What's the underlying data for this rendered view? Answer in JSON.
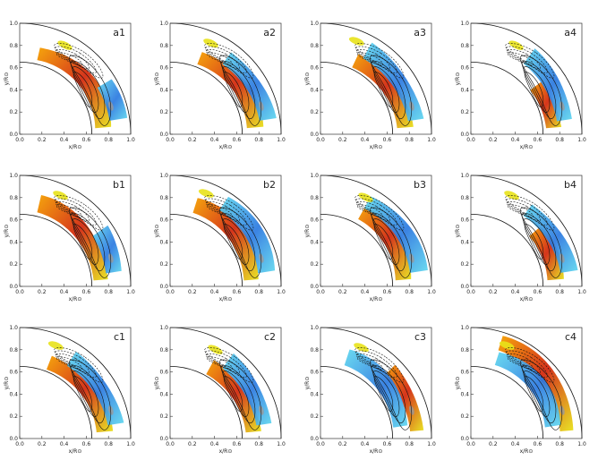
{
  "figure": {
    "x_label": "x/R⊙",
    "y_label": "y/R⊙",
    "x_ticks": [
      "0.0",
      "0.2",
      "0.4",
      "0.6",
      "0.8",
      "1.0"
    ],
    "y_ticks": [
      "0.0",
      "0.2",
      "0.4",
      "0.6",
      "0.8",
      "1.0"
    ],
    "panels": [
      {
        "label": "a1",
        "pos": "1-1",
        "warm": 0.9,
        "cool": 0.3,
        "warm_band": "inner"
      },
      {
        "label": "a2",
        "pos": "1-2",
        "warm": 0.8,
        "cool": 0.6,
        "warm_band": "inner"
      },
      {
        "label": "a3",
        "pos": "1-3",
        "warm": 0.75,
        "cool": 0.7,
        "warm_band": "inner"
      },
      {
        "label": "a4",
        "pos": "1-4",
        "warm": 0.4,
        "cool": 0.6,
        "warm_band": "inner"
      },
      {
        "label": "b1",
        "pos": "2-1",
        "warm": 0.9,
        "cool": 0.35,
        "warm_band": "inner"
      },
      {
        "label": "b2",
        "pos": "2-2",
        "warm": 0.85,
        "cool": 0.65,
        "warm_band": "inner"
      },
      {
        "label": "b3",
        "pos": "2-3",
        "warm": 0.7,
        "cool": 0.7,
        "warm_band": "inner"
      },
      {
        "label": "b4",
        "pos": "2-4",
        "warm": 0.45,
        "cool": 0.6,
        "warm_band": "inner"
      },
      {
        "label": "c1",
        "pos": "3-1",
        "warm": 0.8,
        "cool": 0.65,
        "warm_band": "inner"
      },
      {
        "label": "c2",
        "pos": "3-2",
        "warm": 0.7,
        "cool": 0.6,
        "warm_band": "inner"
      },
      {
        "label": "c3",
        "pos": "3-3",
        "warm": 0.5,
        "cool": 0.85,
        "warm_band": "outer"
      },
      {
        "label": "c4",
        "pos": "3-4",
        "warm": 0.85,
        "cool": 0.85,
        "warm_band": "outer"
      }
    ],
    "colors": {
      "warm": "#d32a10",
      "warm_edge": "#f5a000",
      "yellow": "#e8e21a",
      "cool": "#2a78e0",
      "cool_edge": "#5fd8ef",
      "grey": "#9a9a9a",
      "line": "#111111"
    }
  }
}
